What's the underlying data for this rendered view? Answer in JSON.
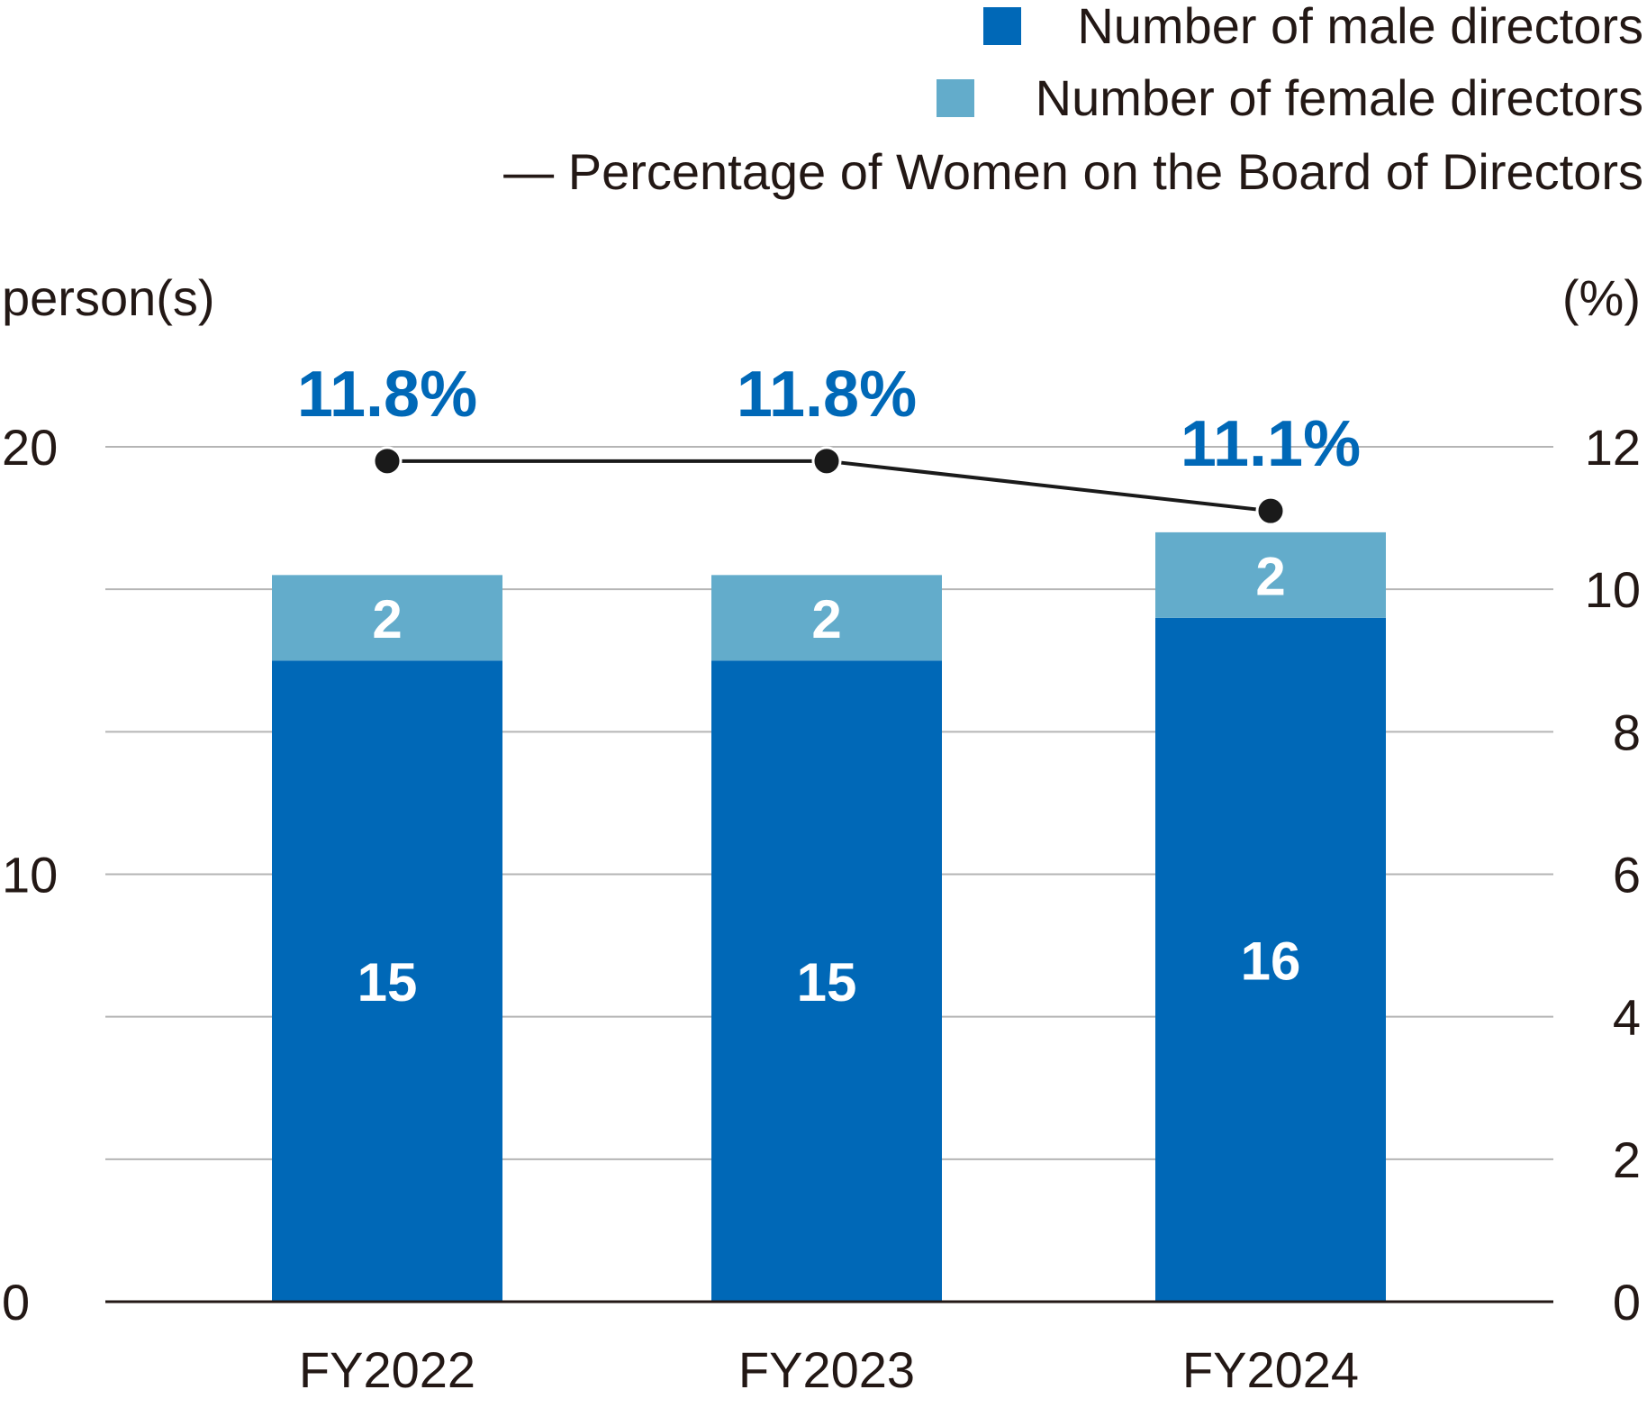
{
  "colors": {
    "male": "#0068b7",
    "female": "#63accb",
    "line": "#1a1a1a",
    "pct_label": "#0068b7",
    "grid": "#b5b5b5",
    "axis": "#231815"
  },
  "legend": {
    "male": "Number of male directors",
    "female": "Number of female directors",
    "line": "— Percentage of Women on the Board of Directors"
  },
  "chart_data": {
    "type": "bar",
    "stacked": true,
    "categories": [
      "FY2022",
      "FY2023",
      "FY2024"
    ],
    "series": [
      {
        "name": "Number of male directors",
        "values": [
          15,
          15,
          16
        ]
      },
      {
        "name": "Number of female directors",
        "values": [
          2,
          2,
          2
        ]
      }
    ],
    "line_series": {
      "name": "Percentage of Women on the Board of Directors",
      "values": [
        11.8,
        11.8,
        11.1
      ],
      "labels": [
        "11.8%",
        "11.8%",
        "11.1%"
      ],
      "axis": "right"
    },
    "ylabel": "person(s)",
    "y2label": "(%)",
    "ylim": [
      0,
      20
    ],
    "y_ticks": [
      0,
      10,
      20
    ],
    "y2lim": [
      0,
      12
    ],
    "y2_ticks": [
      0,
      2,
      4,
      6,
      8,
      10,
      12
    ],
    "grid": true,
    "legend_position": "top-right"
  }
}
